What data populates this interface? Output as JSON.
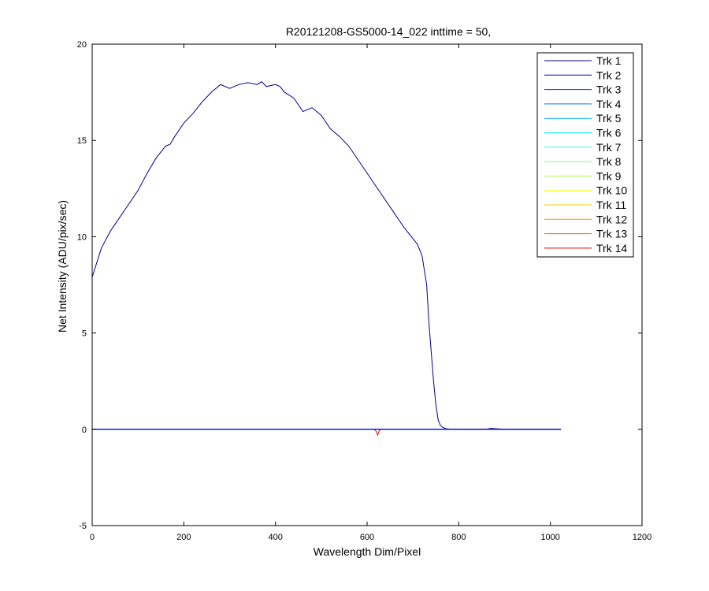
{
  "chart_data": {
    "type": "line",
    "title": "R20121208-GS5000-14_022 inttime = 50,",
    "xlabel": "Wavelength Dim/Pixel",
    "ylabel": "Net Intensity (ADU/pix/sec)",
    "xlim": [
      0,
      1200
    ],
    "ylim": [
      -5,
      20
    ],
    "xticks": [
      0,
      200,
      400,
      600,
      800,
      1000,
      1200
    ],
    "yticks": [
      -5,
      0,
      5,
      10,
      15,
      20
    ],
    "grid": false,
    "legend_position": "top-right",
    "series": [
      {
        "name": "Trk 1",
        "color": "#00008F",
        "x": [
          0,
          20,
          40,
          60,
          80,
          100,
          120,
          140,
          160,
          170,
          180,
          200,
          220,
          240,
          260,
          280,
          290,
          300,
          320,
          340,
          360,
          370,
          380,
          400,
          410,
          420,
          440,
          460,
          470,
          480,
          500,
          520,
          540,
          560,
          580,
          600,
          620,
          640,
          660,
          680,
          700,
          710,
          720,
          730,
          735,
          740,
          745,
          750,
          755,
          760,
          765,
          770,
          775,
          780,
          790,
          800,
          820,
          860,
          870,
          900,
          1023
        ],
        "values": [
          7.9,
          9.4,
          10.3,
          11.0,
          11.7,
          12.4,
          13.3,
          14.1,
          14.7,
          14.8,
          15.2,
          15.9,
          16.4,
          17.0,
          17.5,
          17.9,
          17.8,
          17.7,
          17.9,
          18.0,
          17.9,
          18.05,
          17.8,
          17.9,
          17.8,
          17.5,
          17.2,
          16.5,
          16.6,
          16.7,
          16.3,
          15.6,
          15.2,
          14.7,
          14.0,
          13.3,
          12.6,
          11.9,
          11.2,
          10.5,
          9.9,
          9.6,
          9.0,
          7.5,
          5.5,
          4.0,
          2.5,
          1.3,
          0.5,
          0.2,
          0.1,
          0.05,
          0.02,
          0.01,
          0.0,
          0.0,
          0.0,
          0.0,
          0.05,
          0.0,
          0.0
        ]
      },
      {
        "name": "Trk 2",
        "color": "#0000CF",
        "x": [
          0,
          1023
        ],
        "values": [
          0,
          0
        ]
      },
      {
        "name": "Trk 3",
        "color": "#0030FF",
        "x": [
          0,
          1023
        ],
        "values": [
          0,
          0
        ]
      },
      {
        "name": "Trk 4",
        "color": "#0070FF",
        "x": [
          0,
          1023
        ],
        "values": [
          0,
          0
        ]
      },
      {
        "name": "Trk 5",
        "color": "#00AFFF",
        "x": [
          0,
          1023
        ],
        "values": [
          0,
          0
        ]
      },
      {
        "name": "Trk 6",
        "color": "#00EFFF",
        "x": [
          0,
          1023
        ],
        "values": [
          0,
          0
        ]
      },
      {
        "name": "Trk 7",
        "color": "#30FFCF",
        "x": [
          0,
          1023
        ],
        "values": [
          0,
          0
        ]
      },
      {
        "name": "Trk 8",
        "color": "#70FF8F",
        "x": [
          0,
          1023
        ],
        "values": [
          0,
          0
        ]
      },
      {
        "name": "Trk 9",
        "color": "#AFFF50",
        "x": [
          0,
          1023
        ],
        "values": [
          0,
          0
        ]
      },
      {
        "name": "Trk 10",
        "color": "#EFFF10",
        "x": [
          0,
          1023
        ],
        "values": [
          0,
          0
        ]
      },
      {
        "name": "Trk 11",
        "color": "#FFCF00",
        "x": [
          0,
          1023
        ],
        "values": [
          0,
          0
        ]
      },
      {
        "name": "Trk 12",
        "color": "#FF8F00",
        "x": [
          0,
          1023
        ],
        "values": [
          0,
          0
        ]
      },
      {
        "name": "Trk 13",
        "color": "#FF5000",
        "x": [
          0,
          1023
        ],
        "values": [
          0,
          0
        ]
      },
      {
        "name": "Trk 14",
        "color": "#EF0000",
        "x": [
          0,
          600,
          615,
          620,
          623,
          626,
          630,
          640,
          1023
        ],
        "values": [
          0,
          0,
          0,
          -0.1,
          -0.3,
          -0.1,
          0,
          0,
          0
        ]
      }
    ]
  }
}
